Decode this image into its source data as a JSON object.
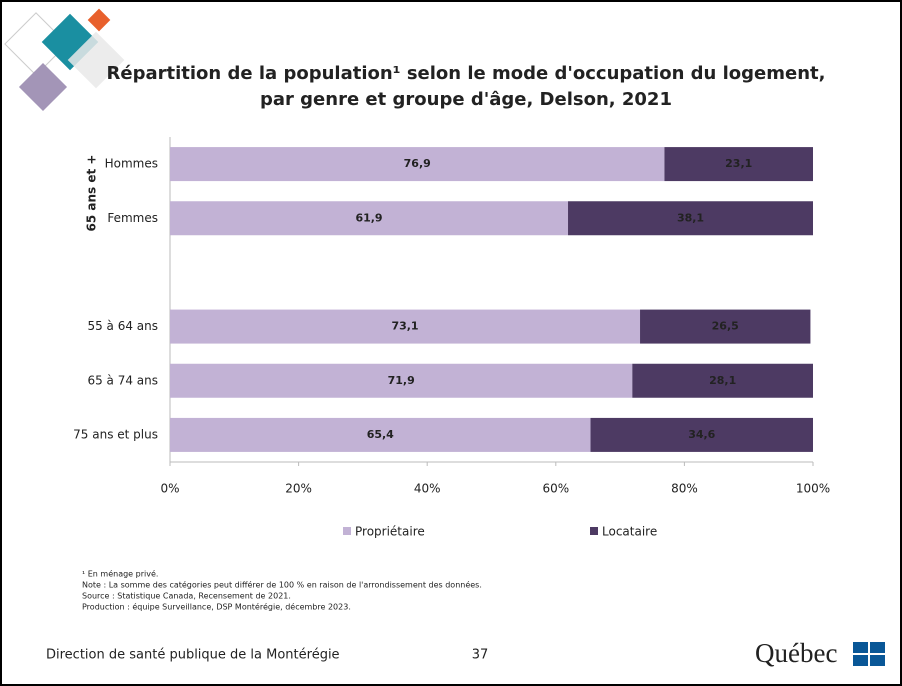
{
  "chart_data": {
    "type": "bar",
    "orientation": "horizontal",
    "stacked": true,
    "title": [
      "Répartition de la population¹ selon le mode d'occupation du logement,",
      "par genre et groupe d'âge, Delson, 2021"
    ],
    "group_label": "65 ans et +",
    "categories": [
      "Hommes",
      "Femmes",
      null,
      "55 à 64 ans",
      "65 à 74 ans",
      "75 ans et plus"
    ],
    "series": [
      {
        "name": "Propriétaire",
        "color": "#c2b2d5",
        "values": [
          76.9,
          61.9,
          null,
          73.1,
          71.9,
          65.4
        ],
        "value_labels": [
          "76,9",
          "61,9",
          null,
          "73,1",
          "71,9",
          "65,4"
        ]
      },
      {
        "name": "Locataire",
        "color": "#4d3a63",
        "values": [
          23.1,
          38.1,
          null,
          26.5,
          28.1,
          34.6
        ],
        "value_labels": [
          "23,1",
          "38,1",
          null,
          "26,5",
          "28,1",
          "34,6"
        ]
      }
    ],
    "xlim": [
      0,
      100
    ],
    "xticks": [
      {
        "value": 0,
        "label": "0%"
      },
      {
        "value": 20,
        "label": "20%"
      },
      {
        "value": 40,
        "label": "40%"
      },
      {
        "value": 60,
        "label": "60%"
      },
      {
        "value": 80,
        "label": "80%"
      },
      {
        "value": 100,
        "label": "100%"
      }
    ],
    "grid": false,
    "legend": "bottom"
  },
  "notes": [
    "¹ En ménage privé.",
    "Note : La somme des catégories peut différer de 100 % en raison de l'arrondissement des données.",
    "Source : Statistique Canada, Recensement de 2021.",
    "Production : équipe Surveillance, DSP Montérégie, décembre 2023."
  ],
  "footer": {
    "organization": "Direction de santé publique de la Montérégie",
    "page": "37",
    "logo": "Québec"
  }
}
